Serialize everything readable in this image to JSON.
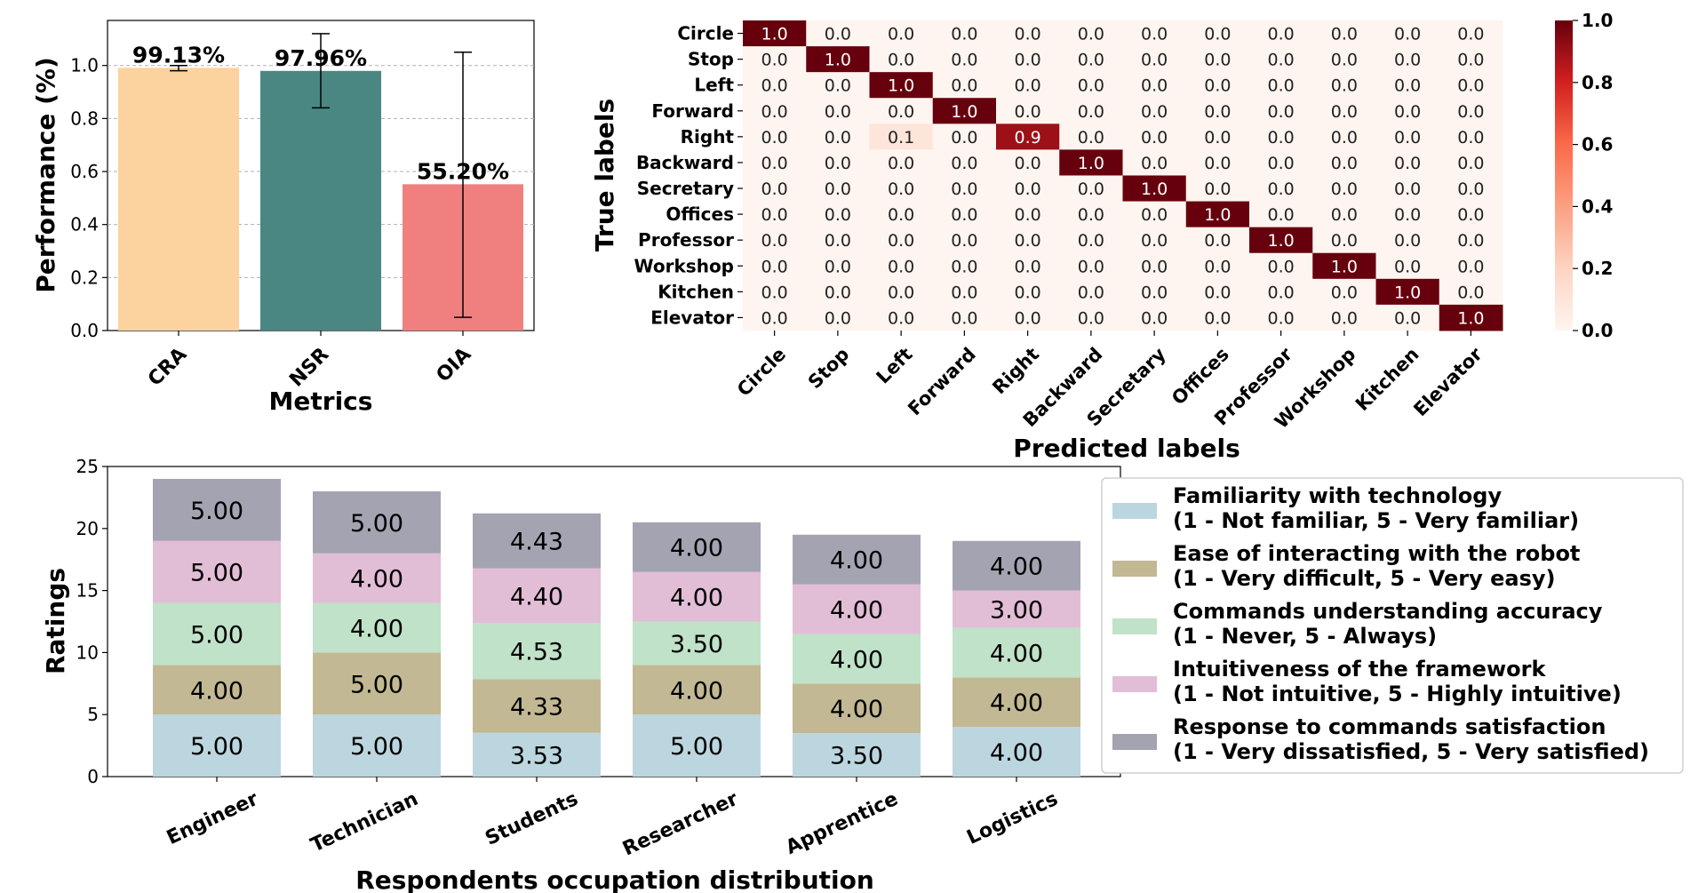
{
  "chart_data": [
    {
      "type": "bar",
      "title": "",
      "xlabel": "Metrics",
      "ylabel": "Performance (%)",
      "ylim": [
        0,
        1.17
      ],
      "yticks": [
        "0.0",
        "0.2",
        "0.4",
        "0.6",
        "0.8",
        "1.0"
      ],
      "grid": true,
      "categories": [
        "CRA",
        "NSR",
        "OIA"
      ],
      "values": [
        0.9913,
        0.9796,
        0.552
      ],
      "data_labels": [
        "99.13%",
        "97.96%",
        "55.20%"
      ],
      "error_low": [
        0.98,
        0.84,
        0.05
      ],
      "error_high": [
        1.0,
        1.12,
        1.05
      ],
      "colors": [
        "#fcd29f",
        "#4a8783",
        "#f08080"
      ]
    },
    {
      "type": "heatmap",
      "xlabel": "Predicted labels",
      "ylabel": "True labels",
      "labels": [
        "Circle",
        "Stop",
        "Left",
        "Forward",
        "Right",
        "Backward",
        "Secretary",
        "Offices",
        "Professor",
        "Workshop",
        "Kitchen",
        "Elevator"
      ],
      "matrix": [
        [
          1.0,
          0.0,
          0.0,
          0.0,
          0.0,
          0.0,
          0.0,
          0.0,
          0.0,
          0.0,
          0.0,
          0.0
        ],
        [
          0.0,
          1.0,
          0.0,
          0.0,
          0.0,
          0.0,
          0.0,
          0.0,
          0.0,
          0.0,
          0.0,
          0.0
        ],
        [
          0.0,
          0.0,
          1.0,
          0.0,
          0.0,
          0.0,
          0.0,
          0.0,
          0.0,
          0.0,
          0.0,
          0.0
        ],
        [
          0.0,
          0.0,
          0.0,
          1.0,
          0.0,
          0.0,
          0.0,
          0.0,
          0.0,
          0.0,
          0.0,
          0.0
        ],
        [
          0.0,
          0.0,
          0.1,
          0.0,
          0.9,
          0.0,
          0.0,
          0.0,
          0.0,
          0.0,
          0.0,
          0.0
        ],
        [
          0.0,
          0.0,
          0.0,
          0.0,
          0.0,
          1.0,
          0.0,
          0.0,
          0.0,
          0.0,
          0.0,
          0.0
        ],
        [
          0.0,
          0.0,
          0.0,
          0.0,
          0.0,
          0.0,
          1.0,
          0.0,
          0.0,
          0.0,
          0.0,
          0.0
        ],
        [
          0.0,
          0.0,
          0.0,
          0.0,
          0.0,
          0.0,
          0.0,
          1.0,
          0.0,
          0.0,
          0.0,
          0.0
        ],
        [
          0.0,
          0.0,
          0.0,
          0.0,
          0.0,
          0.0,
          0.0,
          0.0,
          1.0,
          0.0,
          0.0,
          0.0
        ],
        [
          0.0,
          0.0,
          0.0,
          0.0,
          0.0,
          0.0,
          0.0,
          0.0,
          0.0,
          1.0,
          0.0,
          0.0
        ],
        [
          0.0,
          0.0,
          0.0,
          0.0,
          0.0,
          0.0,
          0.0,
          0.0,
          0.0,
          0.0,
          1.0,
          0.0
        ],
        [
          0.0,
          0.0,
          0.0,
          0.0,
          0.0,
          0.0,
          0.0,
          0.0,
          0.0,
          0.0,
          0.0,
          1.0
        ]
      ],
      "colorbar_ticks": [
        "0.0",
        "0.2",
        "0.4",
        "0.6",
        "0.8",
        "1.0"
      ],
      "colormap": [
        "#fff5f0",
        "#67000d"
      ]
    },
    {
      "type": "bar",
      "stacked": true,
      "xlabel": "Respondents occupation distribution",
      "ylabel": "Ratings",
      "ylim": [
        0,
        25
      ],
      "yticks": [
        "0",
        "5",
        "10",
        "15",
        "20",
        "25"
      ],
      "categories": [
        "Engineer",
        "Technician",
        "Students",
        "Researcher",
        "Apprentice",
        "Logistics"
      ],
      "legend_position": "right",
      "series": [
        {
          "name": "Familiarity with technology",
          "detail": "(1 - Not familiar, 5 - Very familiar)",
          "color": "#bcd6df",
          "values": [
            5.0,
            5.0,
            3.53,
            5.0,
            3.5,
            4.0
          ],
          "labels": [
            "5.00",
            "5.00",
            "3.53",
            "5.00",
            "3.50",
            "4.00"
          ]
        },
        {
          "name": "Ease of interacting with the robot",
          "detail": "(1 - Very difficult, 5 - Very easy)",
          "color": "#c2b893",
          "values": [
            4.0,
            5.0,
            4.33,
            4.0,
            4.0,
            4.0
          ],
          "labels": [
            "4.00",
            "5.00",
            "4.33",
            "4.00",
            "4.00",
            "4.00"
          ]
        },
        {
          "name": "Commands understanding accuracy",
          "detail": "(1 - Never, 5 - Always)",
          "color": "#bfe2c8",
          "values": [
            5.0,
            4.0,
            4.53,
            3.5,
            4.0,
            4.0
          ],
          "labels": [
            "5.00",
            "4.00",
            "4.53",
            "3.50",
            "4.00",
            "4.00"
          ]
        },
        {
          "name": "Intuitiveness of the framework",
          "detail": "(1 - Not intuitive, 5 - Highly intuitive)",
          "color": "#e2bdd6",
          "values": [
            5.0,
            4.0,
            4.4,
            4.0,
            4.0,
            3.0
          ],
          "labels": [
            "5.00",
            "4.00",
            "4.40",
            "4.00",
            "4.00",
            "3.00"
          ]
        },
        {
          "name": "Response to commands satisfaction",
          "detail": "(1 - Very dissatisfied, 5 - Very satisfied)",
          "color": "#a4a3b2",
          "values": [
            5.0,
            5.0,
            4.43,
            4.0,
            4.0,
            4.0
          ],
          "labels": [
            "5.00",
            "5.00",
            "4.43",
            "4.00",
            "4.00",
            "4.00"
          ]
        }
      ]
    }
  ]
}
